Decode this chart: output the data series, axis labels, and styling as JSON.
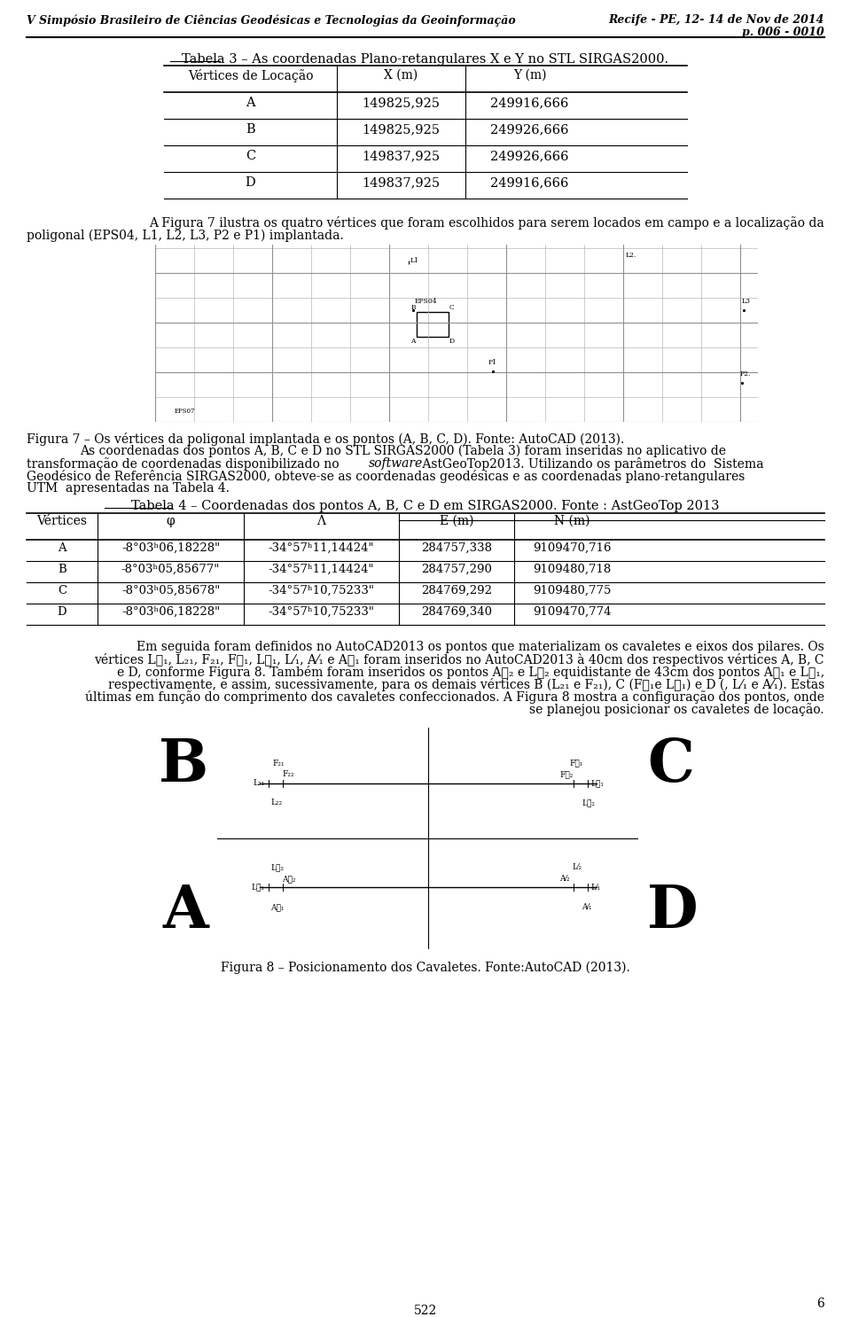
{
  "header_left": "V Simpósio Brasileiro de Ciências Geodésicas e Tecnologias da Geoinformação",
  "header_right1": "Recife - PE, 12- 14 de Nov de 2014",
  "header_right2": "p. 006 - 0010",
  "table3_title": "Tabela 3 – As coordenadas Plano-retangulares X e Y no STL SIRGAS2000.",
  "table3_headers": [
    "Vértices de Locação",
    "X (m)",
    "Y (m)"
  ],
  "table3_rows": [
    [
      "A",
      "149825,925",
      "249916,666"
    ],
    [
      "B",
      "149825,925",
      "249926,666"
    ],
    [
      "C",
      "149837,925",
      "249926,666"
    ],
    [
      "D",
      "149837,925",
      "249916,666"
    ]
  ],
  "table4_title": "Tabela 4 – Coordenadas dos pontos A, B, C e D em SIRGAS2000. Fonte : AstGeoTop 2013",
  "table4_headers": [
    "Vértices",
    "φ",
    "Λ",
    "E (m)",
    "N (m)"
  ],
  "table4_rows": [
    [
      "A",
      "-8°03ʰ06,18228\"",
      "-34°57ʰ11,14424\"",
      "284757,338",
      "9109470,716"
    ],
    [
      "B",
      "-8°03ʰ05,85677\"",
      "-34°57ʰ11,14424\"",
      "284757,290",
      "9109480,718"
    ],
    [
      "C",
      "-8°03ʰ05,85678\"",
      "-34°57ʰ10,75233\"",
      "284769,292",
      "9109480,775"
    ],
    [
      "D",
      "-8°03ʰ06,18228\"",
      "-34°57ʰ10,75233\"",
      "284769,340",
      "9109470,774"
    ]
  ],
  "fig8_caption": "Figura 8 – Posicionamento dos Cavaletes. Fonte:AutoCAD (2013).",
  "footer_page": "6",
  "footer_num": "522",
  "bg_color": "#ffffff"
}
